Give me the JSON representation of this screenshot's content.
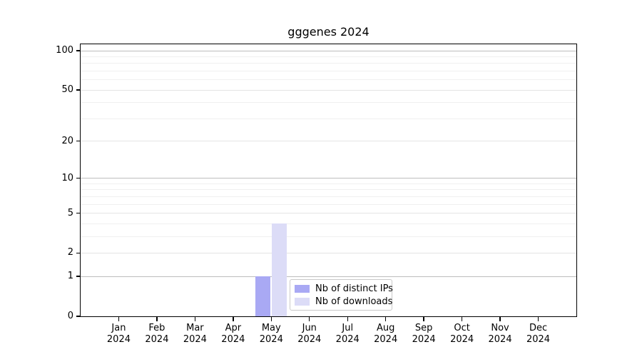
{
  "chart_data": {
    "type": "bar",
    "title": "gggenes 2024",
    "categories": [
      "Jan",
      "Feb",
      "Mar",
      "Apr",
      "May",
      "Jun",
      "Jul",
      "Aug",
      "Sep",
      "Oct",
      "Nov",
      "Dec"
    ],
    "x_year": "2024",
    "series": [
      {
        "name": "Nb of distinct IPs",
        "color": "#a9a9f4",
        "values": [
          0,
          0,
          0,
          0,
          1,
          0,
          0,
          0,
          0,
          0,
          0,
          0
        ]
      },
      {
        "name": "Nb of downloads",
        "color": "#dcdcf7",
        "values": [
          0,
          0,
          0,
          0,
          4,
          0,
          0,
          0,
          0,
          0,
          0,
          0
        ]
      }
    ],
    "y_axis": {
      "scale": "log1p",
      "major_ticks": [
        0,
        1,
        2,
        5,
        10,
        20,
        50,
        100
      ],
      "power_ticks": [
        1,
        10,
        100
      ],
      "minor_ticks": [
        3,
        4,
        6,
        7,
        8,
        9,
        30,
        40,
        60,
        70,
        80,
        90
      ],
      "range": [
        0,
        110
      ]
    },
    "legend_position": "lower center inside plot",
    "grid": "horizontal major and minor",
    "colors": {
      "grid_power": "#bdbdbd",
      "grid_major": "#e4e4e4",
      "grid_minor": "#f0f0f0",
      "axis": "#000000",
      "background": "#ffffff"
    }
  }
}
